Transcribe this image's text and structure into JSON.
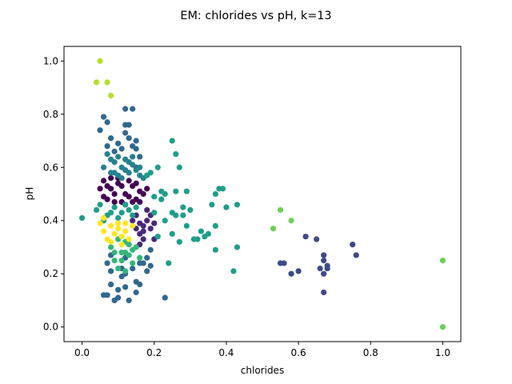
{
  "chart_data": {
    "type": "scatter",
    "title": "EM: chlorides vs pH, k=13",
    "xlabel": "chlorides",
    "ylabel": "pH",
    "xlim": [
      -0.05,
      1.05
    ],
    "ylim": [
      -0.055,
      1.055
    ],
    "xticks": [
      0.0,
      0.2,
      0.4,
      0.6,
      0.8,
      1.0
    ],
    "yticks": [
      0.0,
      0.2,
      0.4,
      0.6,
      0.8,
      1.0
    ],
    "xtick_labels": [
      "0.0",
      "0.2",
      "0.4",
      "0.6",
      "0.8",
      "1.0"
    ],
    "ytick_labels": [
      "0.0",
      "0.2",
      "0.4",
      "0.6",
      "0.8",
      "1.0"
    ],
    "grid": false,
    "series": [
      {
        "color": "#440154",
        "points": [
          [
            0.06,
            0.55
          ],
          [
            0.08,
            0.52
          ],
          [
            0.1,
            0.54
          ],
          [
            0.12,
            0.5
          ],
          [
            0.14,
            0.53
          ],
          [
            0.16,
            0.51
          ],
          [
            0.07,
            0.48
          ],
          [
            0.09,
            0.5
          ],
          [
            0.11,
            0.47
          ],
          [
            0.13,
            0.55
          ],
          [
            0.15,
            0.48
          ],
          [
            0.05,
            0.52
          ],
          [
            0.17,
            0.5
          ],
          [
            0.1,
            0.56
          ],
          [
            0.12,
            0.46
          ],
          [
            0.08,
            0.56
          ],
          [
            0.14,
            0.47
          ],
          [
            0.18,
            0.52
          ],
          [
            0.06,
            0.49
          ],
          [
            0.11,
            0.53
          ],
          [
            0.13,
            0.49
          ],
          [
            0.09,
            0.47
          ],
          [
            0.15,
            0.54
          ],
          [
            0.07,
            0.53
          ],
          [
            0.16,
            0.47
          ]
        ]
      },
      {
        "color": "#482878",
        "points": [
          [
            0.15,
            0.42
          ],
          [
            0.17,
            0.38
          ],
          [
            0.16,
            0.35
          ],
          [
            0.18,
            0.4
          ],
          [
            0.19,
            0.37
          ],
          [
            0.2,
            0.33
          ],
          [
            0.16,
            0.31
          ],
          [
            0.18,
            0.44
          ],
          [
            0.14,
            0.4
          ],
          [
            0.17,
            0.33
          ],
          [
            0.19,
            0.42
          ],
          [
            0.15,
            0.37
          ],
          [
            0.2,
            0.39
          ],
          [
            0.17,
            0.36
          ],
          [
            0.16,
            0.39
          ]
        ]
      },
      {
        "color": "#3e4989",
        "points": [
          [
            0.55,
            0.24
          ],
          [
            0.56,
            0.24
          ],
          [
            0.58,
            0.2
          ],
          [
            0.6,
            0.21
          ],
          [
            0.62,
            0.34
          ],
          [
            0.65,
            0.33
          ],
          [
            0.66,
            0.22
          ],
          [
            0.67,
            0.25
          ],
          [
            0.67,
            0.27
          ],
          [
            0.68,
            0.22
          ],
          [
            0.68,
            0.23
          ],
          [
            0.67,
            0.2
          ],
          [
            0.67,
            0.13
          ],
          [
            0.75,
            0.31
          ],
          [
            0.76,
            0.27
          ]
        ]
      },
      {
        "color": "#31688e",
        "points": [
          [
            0.07,
            0.24
          ],
          [
            0.07,
            0.12
          ],
          [
            0.08,
            0.16
          ],
          [
            0.08,
            0.21
          ],
          [
            0.09,
            0.1
          ],
          [
            0.1,
            0.11
          ],
          [
            0.1,
            0.14
          ],
          [
            0.11,
            0.19
          ],
          [
            0.11,
            0.22
          ],
          [
            0.12,
            0.15
          ],
          [
            0.12,
            0.2
          ],
          [
            0.13,
            0.1
          ],
          [
            0.14,
            0.22
          ],
          [
            0.15,
            0.17
          ],
          [
            0.15,
            0.13
          ],
          [
            0.16,
            0.16
          ],
          [
            0.16,
            0.24
          ],
          [
            0.17,
            0.24
          ],
          [
            0.18,
            0.21
          ],
          [
            0.18,
            0.26
          ],
          [
            0.19,
            0.29
          ],
          [
            0.19,
            0.23
          ],
          [
            0.23,
            0.11
          ],
          [
            0.06,
            0.12
          ],
          [
            0.08,
            0.27
          ],
          [
            0.12,
            0.26
          ],
          [
            0.07,
            0.68
          ],
          [
            0.05,
            0.74
          ],
          [
            0.06,
            0.79
          ],
          [
            0.07,
            0.77
          ],
          [
            0.08,
            0.71
          ],
          [
            0.09,
            0.66
          ],
          [
            0.1,
            0.69
          ],
          [
            0.11,
            0.67
          ],
          [
            0.12,
            0.73
          ],
          [
            0.12,
            0.82
          ],
          [
            0.14,
            0.82
          ],
          [
            0.12,
            0.76
          ],
          [
            0.13,
            0.76
          ],
          [
            0.13,
            0.71
          ],
          [
            0.14,
            0.68
          ],
          [
            0.15,
            0.7
          ],
          [
            0.15,
            0.67
          ],
          [
            0.16,
            0.64
          ],
          [
            0.15,
            0.6
          ]
        ]
      },
      {
        "color": "#26828e",
        "points": [
          [
            0.06,
            0.6
          ],
          [
            0.07,
            0.65
          ],
          [
            0.08,
            0.58
          ],
          [
            0.09,
            0.62
          ],
          [
            0.1,
            0.64
          ],
          [
            0.11,
            0.6
          ],
          [
            0.12,
            0.63
          ],
          [
            0.13,
            0.58
          ],
          [
            0.14,
            0.61
          ],
          [
            0.15,
            0.59
          ],
          [
            0.16,
            0.57
          ],
          [
            0.17,
            0.56
          ],
          [
            0.08,
            0.63
          ],
          [
            0.1,
            0.57
          ],
          [
            0.12,
            0.59
          ],
          [
            0.14,
            0.64
          ],
          [
            0.11,
            0.56
          ],
          [
            0.09,
            0.58
          ],
          [
            0.13,
            0.62
          ],
          [
            0.16,
            0.6
          ]
        ]
      },
      {
        "color": "#1f9e89",
        "points": [
          [
            0.0,
            0.41
          ],
          [
            0.04,
            0.44
          ],
          [
            0.05,
            0.46
          ],
          [
            0.07,
            0.42
          ],
          [
            0.09,
            0.45
          ],
          [
            0.11,
            0.43
          ],
          [
            0.13,
            0.44
          ],
          [
            0.15,
            0.45
          ],
          [
            0.06,
            0.4
          ],
          [
            0.08,
            0.43
          ],
          [
            0.1,
            0.41
          ],
          [
            0.12,
            0.46
          ],
          [
            0.14,
            0.42
          ],
          [
            0.18,
            0.57
          ],
          [
            0.19,
            0.58
          ],
          [
            0.2,
            0.49
          ],
          [
            0.2,
            0.43
          ],
          [
            0.21,
            0.6
          ],
          [
            0.21,
            0.34
          ],
          [
            0.22,
            0.48
          ],
          [
            0.22,
            0.51
          ],
          [
            0.23,
            0.5
          ],
          [
            0.23,
            0.4
          ],
          [
            0.24,
            0.24
          ],
          [
            0.25,
            0.35
          ],
          [
            0.25,
            0.43
          ],
          [
            0.25,
            0.7
          ],
          [
            0.26,
            0.65
          ],
          [
            0.26,
            0.42
          ],
          [
            0.26,
            0.51
          ],
          [
            0.27,
            0.32
          ],
          [
            0.27,
            0.6
          ],
          [
            0.28,
            0.42
          ],
          [
            0.28,
            0.45
          ],
          [
            0.29,
            0.38
          ],
          [
            0.29,
            0.51
          ],
          [
            0.3,
            0.44
          ],
          [
            0.31,
            0.33
          ],
          [
            0.32,
            0.33
          ],
          [
            0.33,
            0.36
          ],
          [
            0.34,
            0.34
          ],
          [
            0.35,
            0.35
          ],
          [
            0.36,
            0.46
          ],
          [
            0.37,
            0.5
          ],
          [
            0.37,
            0.38
          ],
          [
            0.37,
            0.29
          ],
          [
            0.38,
            0.52
          ],
          [
            0.39,
            0.52
          ],
          [
            0.4,
            0.45
          ],
          [
            0.42,
            0.21
          ],
          [
            0.43,
            0.3
          ],
          [
            0.43,
            0.46
          ]
        ]
      },
      {
        "color": "#35b779",
        "points": [
          [
            0.08,
            0.3
          ],
          [
            0.09,
            0.25
          ],
          [
            0.1,
            0.22
          ],
          [
            0.11,
            0.28
          ],
          [
            0.12,
            0.32
          ],
          [
            0.13,
            0.27
          ],
          [
            0.14,
            0.24
          ],
          [
            0.15,
            0.3
          ],
          [
            0.1,
            0.33
          ],
          [
            0.12,
            0.21
          ],
          [
            0.14,
            0.29
          ],
          [
            0.11,
            0.25
          ],
          [
            0.13,
            0.31
          ],
          [
            0.09,
            0.28
          ],
          [
            0.16,
            0.26
          ],
          [
            0.12,
            0.28
          ]
        ]
      },
      {
        "color": "#6ece58",
        "points": [
          [
            0.53,
            0.37
          ],
          [
            0.55,
            0.44
          ],
          [
            0.58,
            0.4
          ],
          [
            1.0,
            0.25
          ],
          [
            1.0,
            0.0
          ]
        ]
      },
      {
        "color": "#b5de2b",
        "points": [
          [
            0.04,
            0.92
          ],
          [
            0.05,
            1.0
          ],
          [
            0.07,
            0.92
          ],
          [
            0.08,
            0.87
          ]
        ]
      },
      {
        "color": "#fde725",
        "points": [
          [
            0.05,
            0.39
          ],
          [
            0.06,
            0.36
          ],
          [
            0.07,
            0.33
          ],
          [
            0.08,
            0.38
          ],
          [
            0.09,
            0.35
          ],
          [
            0.1,
            0.37
          ],
          [
            0.11,
            0.34
          ],
          [
            0.12,
            0.36
          ],
          [
            0.13,
            0.33
          ],
          [
            0.14,
            0.38
          ],
          [
            0.08,
            0.32
          ],
          [
            0.1,
            0.39
          ],
          [
            0.06,
            0.41
          ],
          [
            0.12,
            0.39
          ],
          [
            0.11,
            0.31
          ]
        ]
      }
    ]
  }
}
